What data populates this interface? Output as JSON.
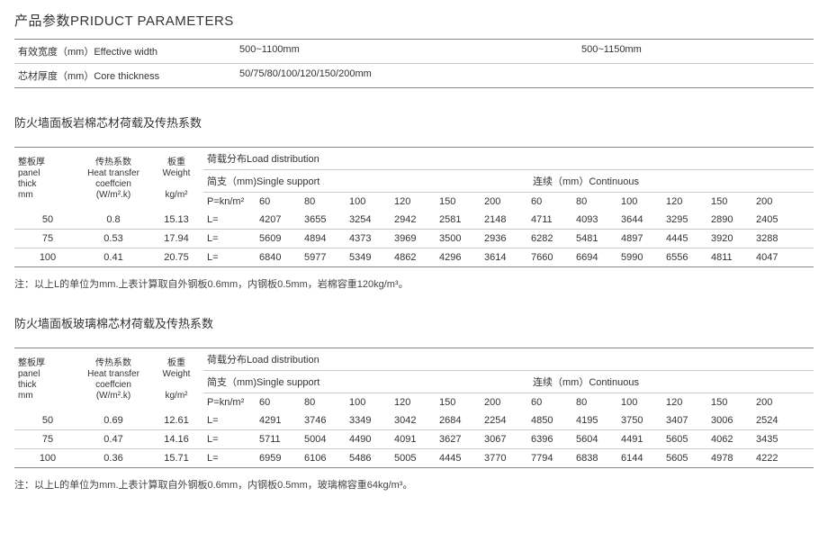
{
  "mainTitle": "产品参数PRIDUCT PARAMETERS",
  "params": {
    "rows": [
      {
        "label": "有效宽度（mm）Effective width",
        "v1": "500~1100mm",
        "v2": "500~1150mm"
      },
      {
        "label": "芯材厚度（mm）Core thickness",
        "v1": "50/75/80/100/120/150/200mm",
        "v2": ""
      }
    ]
  },
  "section1": {
    "title": "防火墙面板岩棉芯材荷载及传热系数",
    "head": {
      "thick_l1": "整板厚",
      "thick_l2": "panel",
      "thick_l3": "thick",
      "thick_l4": "mm",
      "coeff_l1": "传热系数",
      "coeff_l2": "Heat transfer",
      "coeff_l3": "coeffcien",
      "coeff_l4": "(W/m².k)",
      "weight_l1": "板重",
      "weight_l2": "Weight",
      "weight_l3": "kg/m²",
      "load_top": "荷载分布Load distribution",
      "single": "简支（mm)Single support",
      "cont": "连续（mm）Continuous",
      "p": "P=kn/m²",
      "cols": [
        "60",
        "80",
        "100",
        "120",
        "150",
        "200"
      ],
      "l": "L="
    },
    "rows": [
      {
        "thick": "50",
        "coeff": "0.8",
        "weight": "15.13",
        "single": [
          "4207",
          "3655",
          "3254",
          "2942",
          "2581",
          "2148"
        ],
        "cont": [
          "4711",
          "4093",
          "3644",
          "3295",
          "2890",
          "2405"
        ]
      },
      {
        "thick": "75",
        "coeff": "0.53",
        "weight": "17.94",
        "single": [
          "5609",
          "4894",
          "4373",
          "3969",
          "3500",
          "2936"
        ],
        "cont": [
          "6282",
          "5481",
          "4897",
          "4445",
          "3920",
          "3288"
        ]
      },
      {
        "thick": "100",
        "coeff": "0.41",
        "weight": "20.75",
        "single": [
          "6840",
          "5977",
          "5349",
          "4862",
          "4296",
          "3614"
        ],
        "cont": [
          "7660",
          "6694",
          "5990",
          "6556",
          "4811",
          "4047"
        ]
      }
    ],
    "note": "注：以上L的单位为mm.上表计算取自外钢板0.6mm，内钢板0.5mm，岩棉容重120kg/m³。"
  },
  "section2": {
    "title": "防火墙面板玻璃棉芯材荷载及传热系数",
    "rows": [
      {
        "thick": "50",
        "coeff": "0.69",
        "weight": "12.61",
        "single": [
          "4291",
          "3746",
          "3349",
          "3042",
          "2684",
          "2254"
        ],
        "cont": [
          "4850",
          "4195",
          "3750",
          "3407",
          "3006",
          "2524"
        ]
      },
      {
        "thick": "75",
        "coeff": "0.47",
        "weight": "14.16",
        "single": [
          "5711",
          "5004",
          "4490",
          "4091",
          "3627",
          "3067"
        ],
        "cont": [
          "6396",
          "5604",
          "4491",
          "5605",
          "4062",
          "3435"
        ]
      },
      {
        "thick": "100",
        "coeff": "0.36",
        "weight": "15.71",
        "single": [
          "6959",
          "6106",
          "5486",
          "5005",
          "4445",
          "3770"
        ],
        "cont": [
          "7794",
          "6838",
          "6144",
          "5605",
          "4978",
          "4222"
        ]
      }
    ],
    "note": "注：以上L的单位为mm.上表计算取自外钢板0.6mm，内钢板0.5mm，玻璃棉容重64kg/m³。"
  }
}
